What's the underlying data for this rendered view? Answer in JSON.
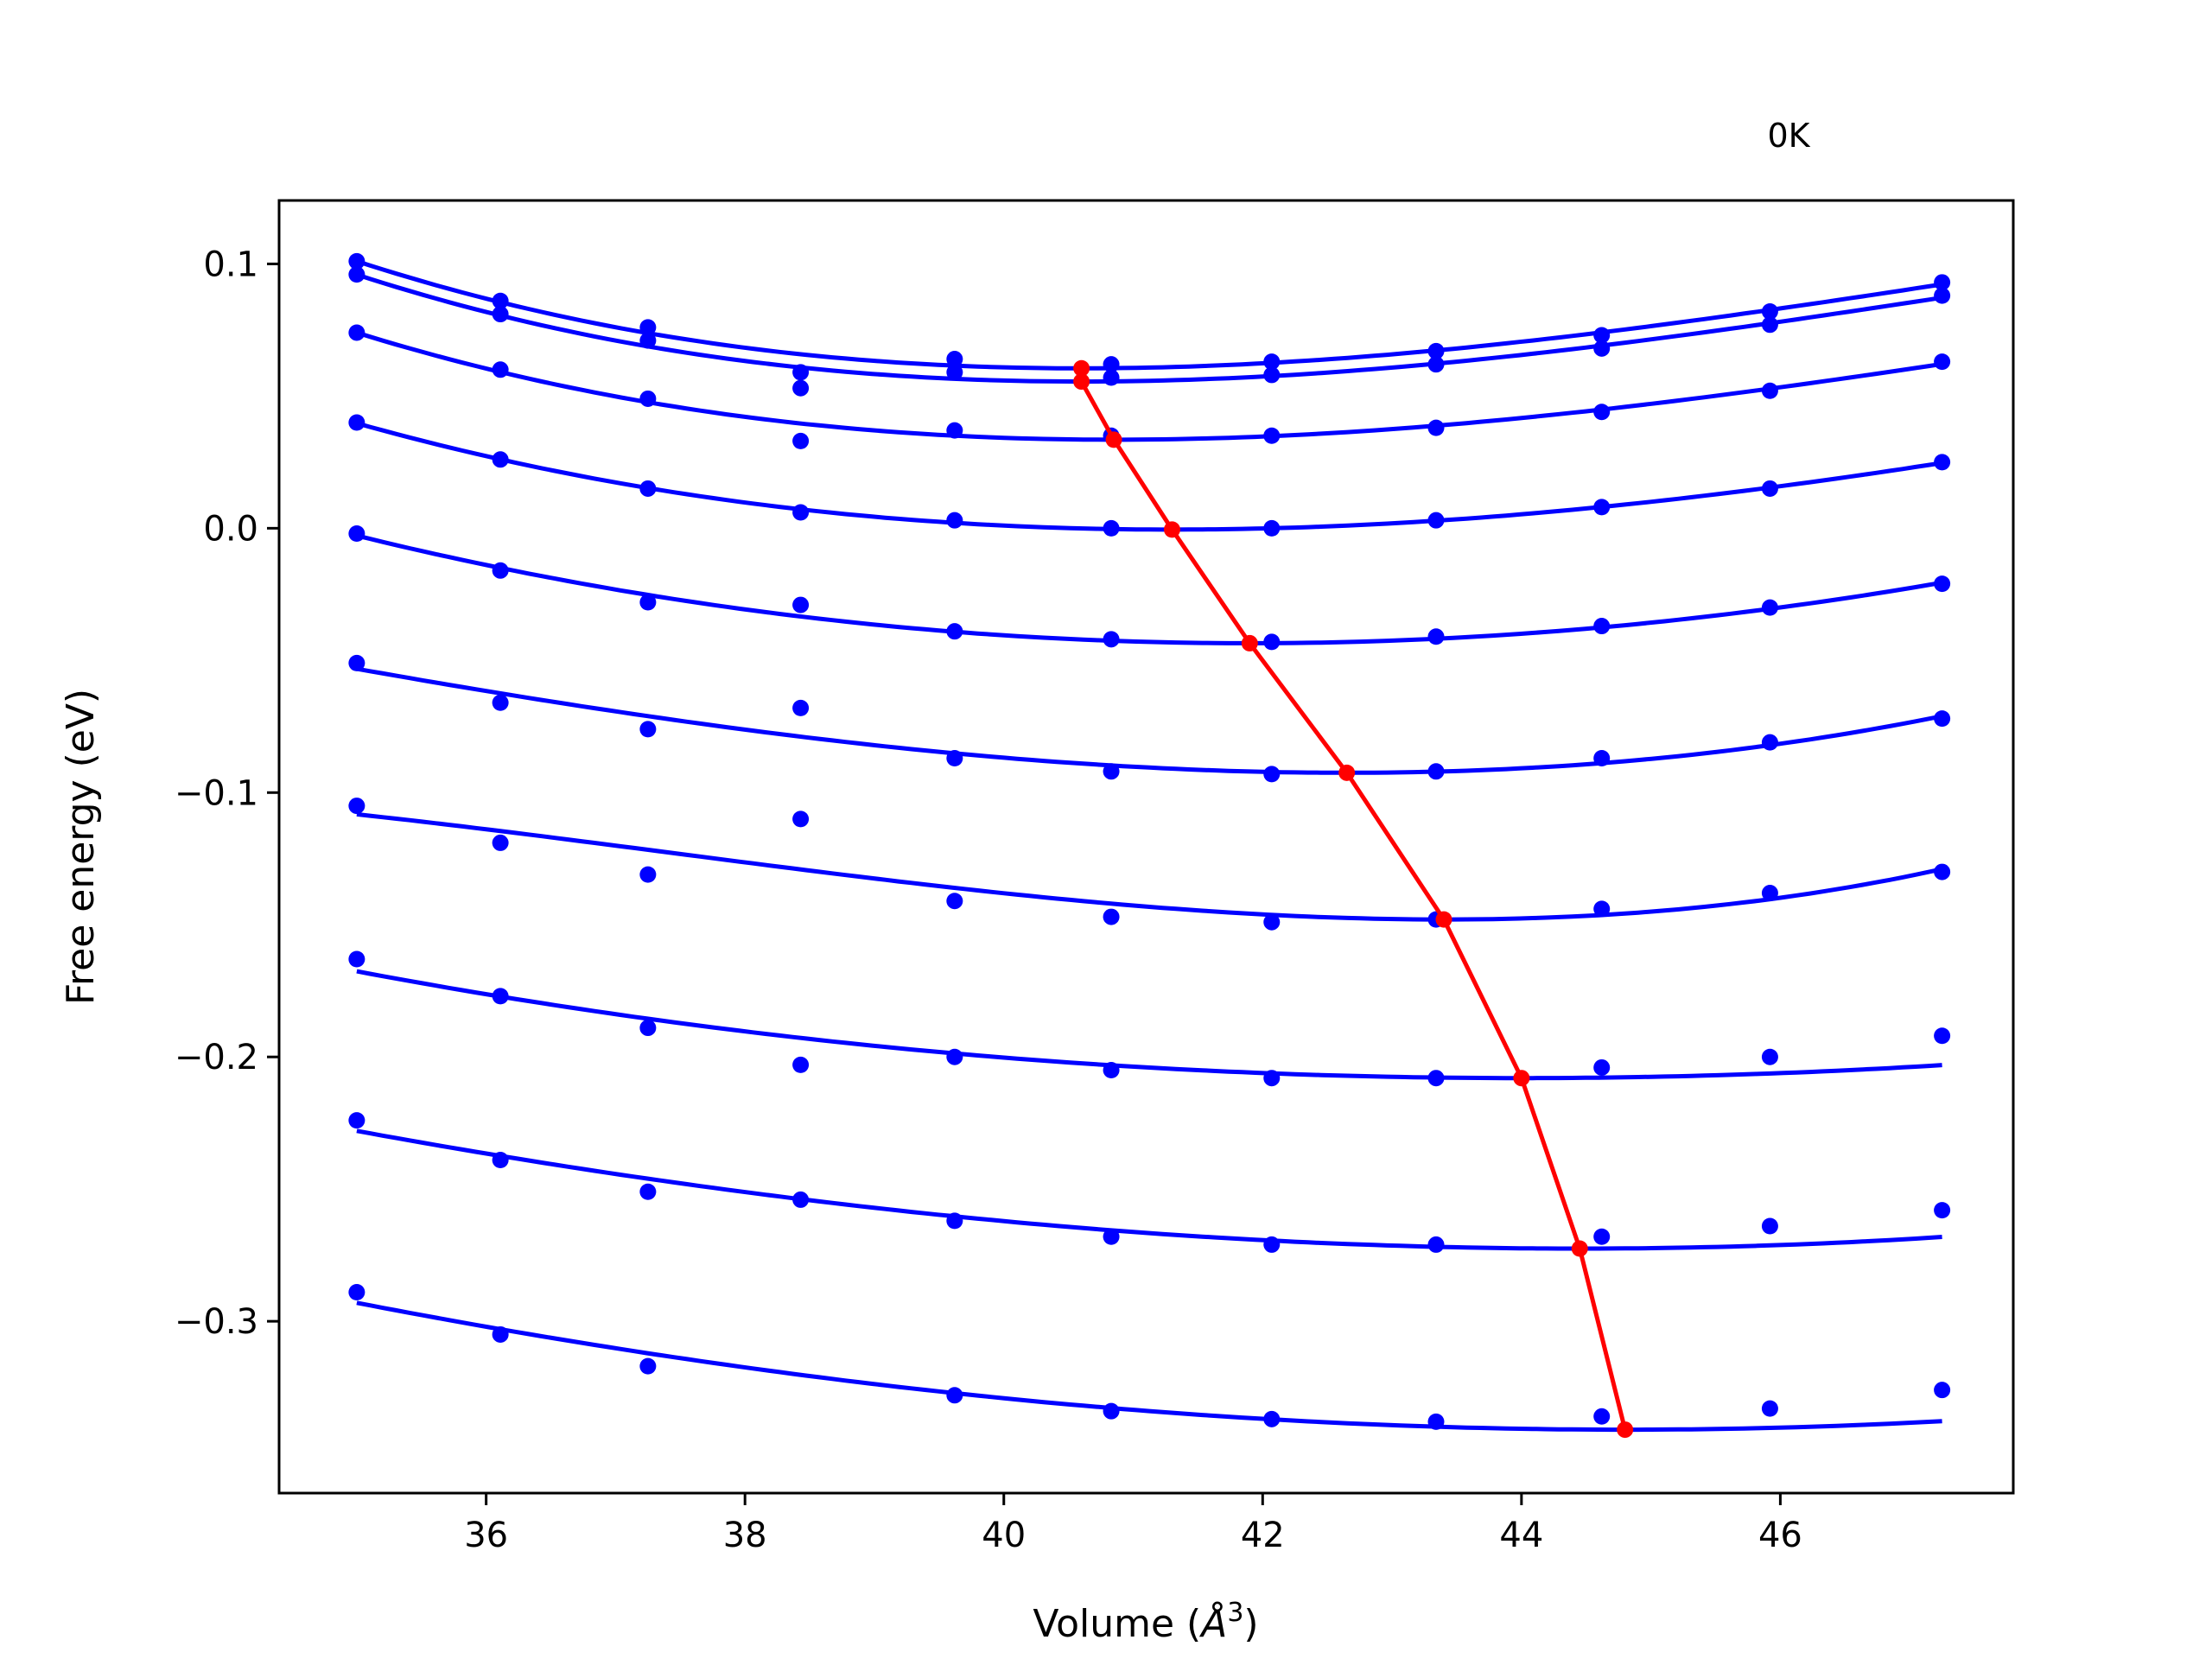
{
  "chart_data": {
    "type": "line",
    "title": "",
    "annotation": "0K",
    "xlabel": "Volume (",
    "xlabel_symbol": "Å",
    "xlabel_exp": "3",
    "xlabel_close": ")",
    "ylabel": "Free energy (eV)",
    "xlim": [
      34.4,
      47.8
    ],
    "ylim": [
      -0.365,
      0.124
    ],
    "xticks": [
      36,
      38,
      40,
      42,
      44,
      46
    ],
    "xtick_labels": [
      "36",
      "38",
      "40",
      "42",
      "44",
      "46"
    ],
    "yticks": [
      0.1,
      0.0,
      -0.1,
      -0.2,
      -0.3
    ],
    "ytick_labels": [
      "0.1",
      "0.0",
      "−0.1",
      "−0.2",
      "−0.3"
    ],
    "grid": false,
    "colors": {
      "points": "#0000ff",
      "fit": "#0000ff",
      "minimum": "#ff0000"
    },
    "volumes": [
      35.0,
      36.11,
      37.25,
      38.43,
      39.62,
      40.83,
      42.07,
      43.34,
      44.62,
      45.92,
      47.25
    ],
    "series": [
      {
        "fit_min_v": 40.6,
        "fit_min_e": 0.0605,
        "values": [
          0.101,
          0.086,
          0.076,
          0.059,
          0.064,
          0.062,
          0.063,
          0.067,
          0.073,
          0.082,
          0.093
        ]
      },
      {
        "fit_min_v": 40.6,
        "fit_min_e": 0.0555,
        "values": [
          0.096,
          0.081,
          0.071,
          0.053,
          0.059,
          0.057,
          0.058,
          0.062,
          0.068,
          0.077,
          0.088
        ]
      },
      {
        "fit_min_v": 40.85,
        "fit_min_e": 0.0335,
        "values": [
          0.074,
          0.06,
          0.049,
          0.033,
          0.037,
          0.035,
          0.035,
          0.038,
          0.044,
          0.052,
          0.063
        ]
      },
      {
        "fit_min_v": 41.3,
        "fit_min_e": -0.0005,
        "values": [
          0.04,
          0.026,
          0.015,
          0.006,
          0.003,
          0.0,
          0.0,
          0.003,
          0.008,
          0.015,
          0.025
        ]
      },
      {
        "fit_min_v": 41.9,
        "fit_min_e": -0.0435,
        "values": [
          -0.002,
          -0.016,
          -0.028,
          -0.029,
          -0.039,
          -0.042,
          -0.043,
          -0.041,
          -0.037,
          -0.03,
          -0.021
        ]
      },
      {
        "fit_min_v": 42.65,
        "fit_min_e": -0.0925,
        "values": [
          -0.051,
          -0.066,
          -0.076,
          -0.068,
          -0.087,
          -0.092,
          -0.093,
          -0.092,
          -0.087,
          -0.081,
          -0.072
        ]
      },
      {
        "fit_min_v": 43.4,
        "fit_min_e": -0.148,
        "values": [
          -0.105,
          -0.119,
          -0.131,
          -0.11,
          -0.141,
          -0.147,
          -0.149,
          -0.148,
          -0.144,
          -0.138,
          -0.13
        ]
      },
      {
        "fit_min_v": 44.0,
        "fit_min_e": -0.208,
        "values": [
          -0.163,
          -0.177,
          -0.189,
          -0.203,
          -0.2,
          -0.205,
          -0.208,
          -0.208,
          -0.204,
          -0.2,
          -0.192
        ]
      },
      {
        "fit_min_v": 44.45,
        "fit_min_e": -0.2725,
        "values": [
          -0.224,
          -0.239,
          -0.251,
          -0.254,
          -0.262,
          -0.268,
          -0.271,
          -0.271,
          -0.268,
          -0.264,
          -0.258
        ]
      },
      {
        "fit_min_v": 44.8,
        "fit_min_e": -0.341,
        "values": [
          -0.289,
          -0.305,
          -0.317,
          null,
          -0.328,
          -0.334,
          -0.337,
          -0.338,
          -0.336,
          -0.333,
          -0.326
        ]
      }
    ]
  }
}
